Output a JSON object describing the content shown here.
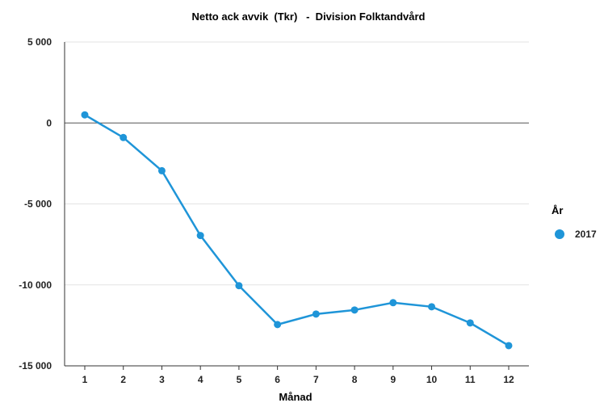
{
  "chart_data": {
    "type": "line",
    "title": "Netto ack avvik  (Tkr)   -  Division Folktandvård",
    "xlabel": "Månad",
    "ylabel": "",
    "categories": [
      "1",
      "2",
      "3",
      "4",
      "5",
      "6",
      "7",
      "8",
      "9",
      "10",
      "11",
      "12"
    ],
    "y_ticks": [
      5000,
      0,
      -5000,
      -10000,
      -15000
    ],
    "y_tick_labels": [
      "5 000",
      "0",
      "-5 000",
      "-10 000",
      "-15 000"
    ],
    "ylim": [
      -15000,
      5000
    ],
    "grid": true,
    "legend": {
      "title": "År",
      "position": "right"
    },
    "series": [
      {
        "name": "2017",
        "color": "#1f95d8",
        "values": [
          500,
          -900,
          -2950,
          -6950,
          -10050,
          -12450,
          -11800,
          -11550,
          -11100,
          -11350,
          -12350,
          -13750
        ]
      }
    ]
  }
}
